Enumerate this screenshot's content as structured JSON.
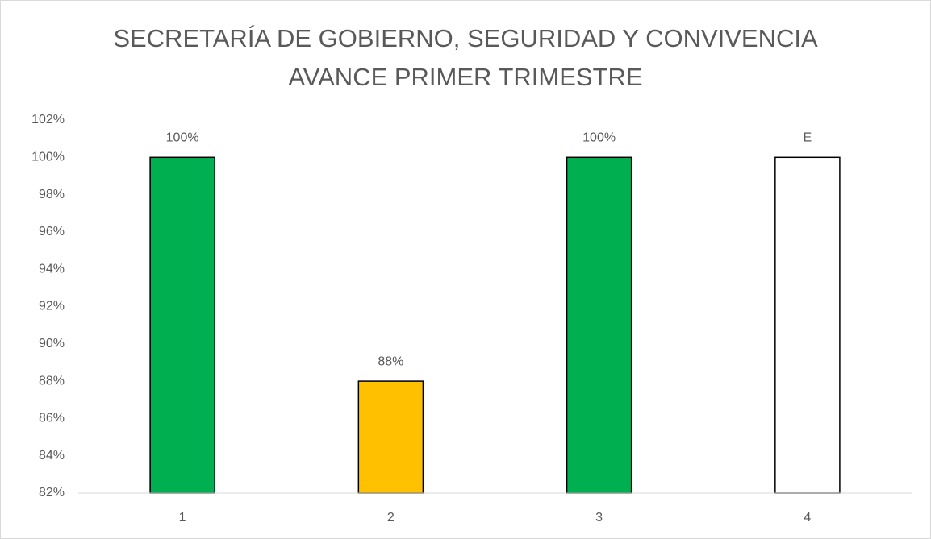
{
  "chart_data": {
    "type": "bar",
    "title": "SECRETARÍA DE GOBIERNO, SEGURIDAD Y CONVIVENCIA",
    "subtitle": "AVANCE PRIMER TRIMESTRE",
    "categories": [
      "1",
      "2",
      "3",
      "4"
    ],
    "values": [
      100,
      88,
      100,
      100
    ],
    "value_labels": [
      "100%",
      "88%",
      "100%",
      "E"
    ],
    "colors": [
      "#00b050",
      "#ffc000",
      "#00b050",
      "#ffffff"
    ],
    "ylim": [
      82,
      102
    ],
    "yticks": [
      {
        "value": 82,
        "label": "82%"
      },
      {
        "value": 84,
        "label": "84%"
      },
      {
        "value": 86,
        "label": "86%"
      },
      {
        "value": 88,
        "label": "88%"
      },
      {
        "value": 90,
        "label": "90%"
      },
      {
        "value": 92,
        "label": "92%"
      },
      {
        "value": 94,
        "label": "94%"
      },
      {
        "value": 96,
        "label": "96%"
      },
      {
        "value": 98,
        "label": "98%"
      },
      {
        "value": 100,
        "label": "100%"
      },
      {
        "value": 102,
        "label": "102%"
      }
    ],
    "grid": false
  }
}
